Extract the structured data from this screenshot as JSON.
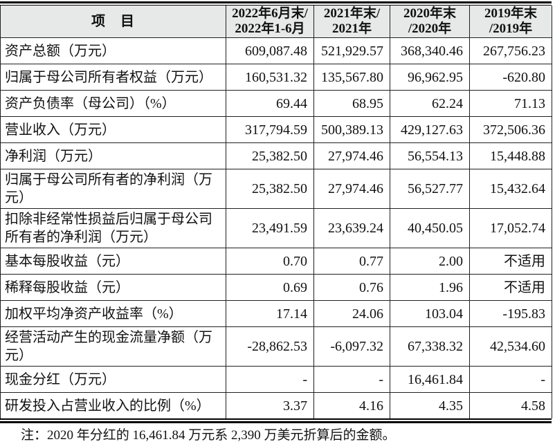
{
  "table": {
    "header": {
      "item_label": "项　目",
      "periods": [
        {
          "line1": "2022年6月末/",
          "line2": "2022年1-6月"
        },
        {
          "line1": "2021年末/",
          "line2": "2021年"
        },
        {
          "line1": "2020年末",
          "line2": "/2020年"
        },
        {
          "line1": "2019年末",
          "line2": "/2019年"
        }
      ]
    },
    "rows": [
      {
        "label": "资产总额（万元）",
        "values": [
          "609,087.48",
          "521,929.57",
          "368,340.46",
          "267,756.23"
        ]
      },
      {
        "label": "归属于母公司所有者权益（万元）",
        "values": [
          "160,531.32",
          "135,567.80",
          "96,962.95",
          "-620.80"
        ]
      },
      {
        "label": "资产负债率（母公司）（%）",
        "values": [
          "69.44",
          "68.95",
          "62.24",
          "71.13"
        ]
      },
      {
        "label": "营业收入（万元）",
        "values": [
          "317,794.59",
          "500,389.13",
          "429,127.63",
          "372,506.36"
        ]
      },
      {
        "label": "净利润（万元）",
        "values": [
          "25,382.50",
          "27,974.46",
          "56,554.13",
          "15,448.88"
        ]
      },
      {
        "label": "归属于母公司所有者的净利润（万元）",
        "values": [
          "25,382.50",
          "27,974.46",
          "56,527.77",
          "15,432.64"
        ]
      },
      {
        "label": "扣除非经常性损益后归属于母公司所有者的净利润（万元）",
        "values": [
          "23,491.59",
          "23,639.24",
          "40,450.05",
          "17,052.74"
        ]
      },
      {
        "label": "基本每股收益（元）",
        "values": [
          "0.70",
          "0.77",
          "2.00",
          "不适用"
        ]
      },
      {
        "label": "稀释每股收益（元）",
        "values": [
          "0.69",
          "0.76",
          "1.96",
          "不适用"
        ]
      },
      {
        "label": "加权平均净资产收益率（%）",
        "values": [
          "17.14",
          "24.06",
          "103.04",
          "-195.83"
        ]
      },
      {
        "label": "经营活动产生的现金流量净额（万元）",
        "values": [
          "-28,862.53",
          "-6,097.32",
          "67,338.32",
          "42,534.60"
        ]
      },
      {
        "label": "现金分红（万元）",
        "values": [
          "-",
          "-",
          "16,461.84",
          "-"
        ]
      },
      {
        "label": "研发投入占营业收入的比例（%）",
        "values": [
          "3.37",
          "4.16",
          "4.35",
          "4.58"
        ]
      }
    ]
  },
  "note": "注：2020 年分红的 16,461.84 万元系 2,390 万美元折算后的金额。",
  "colors": {
    "header_bg": "#e7e8e8",
    "border": "#1f1f1f",
    "text": "#111111"
  }
}
